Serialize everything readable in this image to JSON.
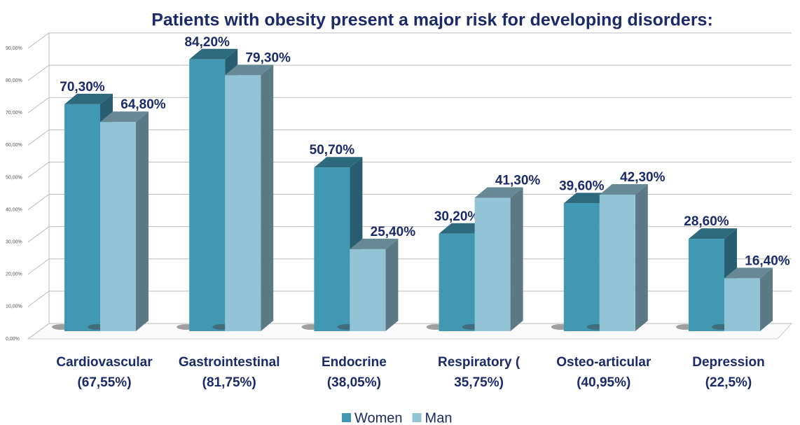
{
  "chart_data": {
    "type": "bar3d",
    "title": "Patients with obesity present a major risk for developing disorders:",
    "categories": [
      [
        "Cardiovascular",
        "(67,55%)"
      ],
      [
        "Gastrointestinal",
        "(81,75%)"
      ],
      [
        "Endocrine",
        "(38,05%)"
      ],
      [
        "Respiratory (",
        "35,75%)"
      ],
      [
        "Osteo-articular",
        "(40,95%)"
      ],
      [
        "Depression",
        "(22,5%)"
      ]
    ],
    "series": [
      {
        "name": "Women",
        "color": "#4098b3",
        "values": [
          70.3,
          84.2,
          50.7,
          30.2,
          39.6,
          28.6
        ],
        "value_labels": [
          "70,30%",
          "84,20%",
          "50,70%",
          "30,20%",
          "39,60%",
          "28,60%"
        ]
      },
      {
        "name": "Man",
        "color": "#93c4d6",
        "values": [
          64.8,
          79.3,
          25.4,
          41.3,
          42.3,
          16.4
        ],
        "value_labels": [
          "64,80%",
          "79,30%",
          "25,40%",
          "41,30%",
          "42,30%",
          "16,40%"
        ]
      }
    ],
    "ylim": [
      0,
      90
    ],
    "yticks": [
      {
        "value": 0,
        "label": "0,00%"
      },
      {
        "value": 10,
        "label": "10,00%"
      },
      {
        "value": 20,
        "label": "20,00%"
      },
      {
        "value": 30,
        "label": "30,00%"
      },
      {
        "value": 40,
        "label": "40,00%"
      },
      {
        "value": 50,
        "label": "50,00%"
      },
      {
        "value": 60,
        "label": "60,00%"
      },
      {
        "value": 70,
        "label": "70,00%"
      },
      {
        "value": 80,
        "label": "80,00%"
      },
      {
        "value": 90,
        "label": "90,00%"
      }
    ],
    "grid": true,
    "legend": "bottom"
  }
}
